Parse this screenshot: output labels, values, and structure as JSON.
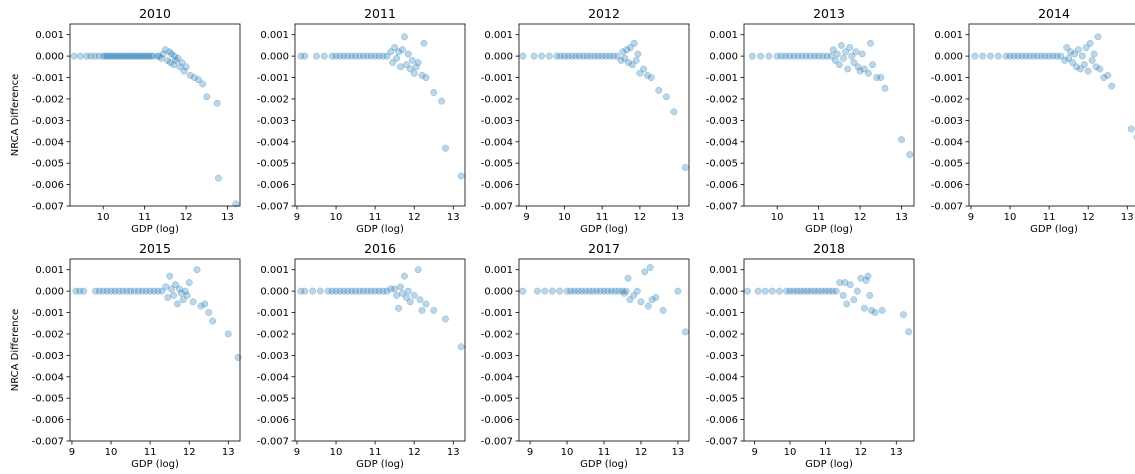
{
  "chart_data": [
    {
      "type": "scatter",
      "title": "2010",
      "xlabel": "GDP (log)",
      "ylabel": "NRCA Difference",
      "xlim": [
        9.2,
        13.3
      ],
      "ylim": [
        -0.007,
        0.0015
      ],
      "xticks": [
        10,
        11,
        12,
        13
      ],
      "yticks": [
        0.001,
        0.0,
        -0.001,
        -0.002,
        -0.003,
        -0.004,
        -0.005,
        -0.006,
        -0.007
      ],
      "x": [
        9.3,
        9.45,
        9.6,
        9.7,
        9.8,
        9.9,
        10.0,
        10.05,
        10.1,
        10.15,
        10.2,
        10.25,
        10.3,
        10.35,
        10.4,
        10.45,
        10.5,
        10.55,
        10.6,
        10.65,
        10.7,
        10.75,
        10.8,
        10.85,
        10.9,
        10.95,
        11.0,
        11.05,
        11.1,
        11.15,
        11.2,
        11.3,
        11.35,
        11.4,
        11.45,
        11.5,
        11.55,
        11.6,
        11.62,
        11.65,
        11.7,
        11.72,
        11.75,
        11.8,
        11.85,
        11.9,
        11.95,
        12.0,
        12.1,
        12.2,
        12.3,
        12.4,
        12.5,
        12.75,
        12.78,
        13.2
      ],
      "y": [
        0.0,
        0.0,
        0.0,
        0.0,
        0.0,
        0.0,
        0.0,
        0.0,
        0.0,
        0.0,
        0.0,
        0.0,
        0.0,
        0.0,
        0.0,
        0.0,
        0.0,
        0.0,
        0.0,
        0.0,
        0.0,
        0.0,
        0.0,
        0.0,
        0.0,
        0.0,
        0.0,
        0.0,
        0.0,
        0.0,
        0.0,
        0.0,
        0.0,
        -0.0001,
        0.0001,
        0.0003,
        -0.0002,
        0.0002,
        -0.0003,
        0.0001,
        -0.0004,
        0.0,
        -0.0002,
        -0.0001,
        -0.0005,
        -0.0003,
        -0.0007,
        -0.0005,
        -0.0009,
        -0.001,
        -0.0011,
        -0.0013,
        -0.0019,
        -0.0022,
        -0.0057,
        -0.0069
      ]
    },
    {
      "type": "scatter",
      "title": "2011",
      "xlabel": "GDP (log)",
      "ylabel": "",
      "xlim": [
        8.95,
        13.3
      ],
      "ylim": [
        -0.007,
        0.0015
      ],
      "xticks": [
        9,
        10,
        11,
        12,
        13
      ],
      "yticks": [
        0.001,
        0.0,
        -0.001,
        -0.002,
        -0.003,
        -0.004,
        -0.005,
        -0.006,
        -0.007
      ],
      "x": [
        9.1,
        9.2,
        9.5,
        9.7,
        9.9,
        10.0,
        10.1,
        10.2,
        10.3,
        10.4,
        10.5,
        10.6,
        10.7,
        10.8,
        10.9,
        11.0,
        11.1,
        11.2,
        11.3,
        11.4,
        11.45,
        11.5,
        11.55,
        11.6,
        11.65,
        11.7,
        11.75,
        11.8,
        11.85,
        11.9,
        11.95,
        12.0,
        12.05,
        12.1,
        12.2,
        12.25,
        12.3,
        12.5,
        12.7,
        12.8,
        13.2
      ],
      "y": [
        0.0,
        0.0,
        0.0,
        0.0,
        0.0,
        0.0,
        0.0,
        0.0,
        0.0,
        0.0,
        0.0,
        0.0,
        0.0,
        0.0,
        0.0,
        0.0,
        0.0,
        0.0,
        0.0,
        0.0002,
        -0.0003,
        0.0004,
        -0.0001,
        0.0002,
        -0.0005,
        0.0003,
        0.0009,
        -0.0004,
        0.0001,
        -0.0006,
        -0.0002,
        -0.0008,
        -0.0005,
        -0.0003,
        -0.0009,
        0.0006,
        -0.001,
        -0.0017,
        -0.0021,
        -0.0043,
        -0.0056
      ]
    },
    {
      "type": "scatter",
      "title": "2012",
      "xlabel": "GDP (log)",
      "ylabel": "",
      "xlim": [
        8.8,
        13.3
      ],
      "ylim": [
        -0.007,
        0.0015
      ],
      "xticks": [
        9,
        10,
        11,
        12,
        13
      ],
      "yticks": [
        0.001,
        0.0,
        -0.001,
        -0.002,
        -0.003,
        -0.004,
        -0.005,
        -0.006,
        -0.007
      ],
      "x": [
        8.9,
        9.2,
        9.4,
        9.6,
        9.8,
        9.9,
        10.0,
        10.1,
        10.2,
        10.3,
        10.4,
        10.5,
        10.6,
        10.7,
        10.8,
        10.9,
        11.0,
        11.1,
        11.2,
        11.3,
        11.4,
        11.5,
        11.55,
        11.6,
        11.65,
        11.7,
        11.75,
        11.8,
        11.85,
        11.9,
        11.95,
        12.0,
        12.1,
        12.2,
        12.3,
        12.5,
        12.7,
        12.9,
        13.2
      ],
      "y": [
        0.0,
        0.0,
        0.0,
        0.0,
        0.0,
        0.0,
        0.0,
        0.0,
        0.0,
        0.0,
        0.0,
        0.0,
        0.0,
        0.0,
        0.0,
        0.0,
        0.0,
        0.0,
        0.0,
        0.0,
        0.0,
        -0.0002,
        0.0002,
        -0.0001,
        0.0003,
        -0.0003,
        0.0004,
        -0.0004,
        0.0006,
        -0.0002,
        0.0001,
        -0.0008,
        -0.0006,
        -0.0009,
        -0.001,
        -0.0016,
        -0.0019,
        -0.0026,
        -0.0052
      ]
    },
    {
      "type": "scatter",
      "title": "2013",
      "xlabel": "GDP (log)",
      "ylabel": "",
      "xlim": [
        9.2,
        13.3
      ],
      "ylim": [
        -0.007,
        0.0015
      ],
      "xticks": [
        10,
        11,
        12,
        13
      ],
      "yticks": [
        0.001,
        0.0,
        -0.001,
        -0.002,
        -0.003,
        -0.004,
        -0.005,
        -0.006,
        -0.007
      ],
      "x": [
        9.4,
        9.6,
        9.8,
        10.0,
        10.1,
        10.2,
        10.3,
        10.4,
        10.5,
        10.6,
        10.7,
        10.8,
        10.9,
        11.0,
        11.1,
        11.2,
        11.3,
        11.35,
        11.4,
        11.45,
        11.5,
        11.55,
        11.6,
        11.65,
        11.7,
        11.75,
        11.8,
        11.85,
        11.9,
        11.95,
        12.0,
        12.05,
        12.1,
        12.2,
        12.25,
        12.3,
        12.4,
        12.5,
        12.6,
        13.0,
        13.2
      ],
      "y": [
        0.0,
        0.0,
        0.0,
        0.0,
        0.0,
        0.0,
        0.0,
        0.0,
        0.0,
        0.0,
        0.0,
        0.0,
        0.0,
        0.0,
        0.0,
        0.0,
        0.0,
        0.0003,
        -0.0002,
        0.0001,
        -0.0004,
        0.0005,
        -0.0001,
        0.0002,
        -0.0006,
        0.0004,
        0.0,
        -0.0003,
        0.0002,
        -0.0005,
        -0.0007,
        0.0001,
        -0.0006,
        -0.0008,
        0.0006,
        -0.0004,
        -0.001,
        -0.001,
        -0.0015,
        -0.0039,
        -0.0046
      ]
    },
    {
      "type": "scatter",
      "title": "2014",
      "xlabel": "GDP (log)",
      "ylabel": "",
      "xlim": [
        8.95,
        13.3
      ],
      "ylim": [
        -0.007,
        0.0015
      ],
      "xticks": [
        9,
        10,
        11,
        12,
        13
      ],
      "yticks": [
        0.001,
        0.0,
        -0.001,
        -0.002,
        -0.003,
        -0.004,
        -0.005,
        -0.006,
        -0.007
      ],
      "x": [
        9.1,
        9.3,
        9.5,
        9.7,
        9.9,
        10.0,
        10.1,
        10.2,
        10.3,
        10.4,
        10.5,
        10.6,
        10.7,
        10.8,
        10.9,
        11.0,
        11.1,
        11.2,
        11.3,
        11.4,
        11.45,
        11.5,
        11.55,
        11.6,
        11.65,
        11.7,
        11.75,
        11.8,
        11.85,
        11.9,
        11.95,
        12.0,
        12.05,
        12.1,
        12.15,
        12.2,
        12.25,
        12.3,
        12.4,
        12.5,
        12.6,
        13.1,
        13.25
      ],
      "y": [
        0.0,
        0.0,
        0.0,
        0.0,
        0.0,
        0.0,
        0.0,
        0.0,
        0.0,
        0.0,
        0.0,
        0.0,
        0.0,
        0.0,
        0.0,
        0.0,
        0.0,
        0.0,
        0.0,
        -0.0002,
        0.0004,
        -0.0001,
        0.0002,
        -0.0003,
        0.0001,
        -0.0005,
        0.0003,
        -0.0006,
        0.0,
        -0.0004,
        0.0004,
        -0.0007,
        0.0006,
        -0.0002,
        0.0001,
        -0.0005,
        0.0009,
        -0.0006,
        -0.001,
        -0.0009,
        -0.0014,
        -0.0034,
        -0.0038
      ]
    },
    {
      "type": "scatter",
      "title": "2015",
      "xlabel": "GDP (log)",
      "ylabel": "NRCA Difference",
      "xlim": [
        8.95,
        13.3
      ],
      "ylim": [
        -0.007,
        0.0015
      ],
      "xticks": [
        9,
        10,
        11,
        12,
        13
      ],
      "yticks": [
        0.001,
        0.0,
        -0.001,
        -0.002,
        -0.003,
        -0.004,
        -0.005,
        -0.006,
        -0.007
      ],
      "x": [
        9.1,
        9.2,
        9.3,
        9.6,
        9.7,
        9.8,
        9.9,
        10.0,
        10.1,
        10.2,
        10.3,
        10.4,
        10.5,
        10.6,
        10.7,
        10.8,
        10.9,
        11.0,
        11.1,
        11.2,
        11.3,
        11.4,
        11.45,
        11.5,
        11.55,
        11.6,
        11.65,
        11.7,
        11.75,
        11.8,
        11.85,
        11.9,
        11.95,
        12.0,
        12.1,
        12.2,
        12.3,
        12.4,
        12.5,
        12.6,
        13.0,
        13.25
      ],
      "y": [
        0.0,
        0.0,
        0.0,
        0.0,
        0.0,
        0.0,
        0.0,
        0.0,
        0.0,
        0.0,
        0.0,
        0.0,
        0.0,
        0.0,
        0.0,
        0.0,
        0.0,
        0.0,
        0.0,
        0.0,
        0.0,
        0.0002,
        -0.0003,
        0.0007,
        0.0001,
        -0.0002,
        0.0003,
        -0.0006,
        0.0001,
        -0.0001,
        -0.0004,
        0.0,
        -0.0002,
        0.0004,
        -0.0005,
        0.001,
        -0.0007,
        -0.0006,
        -0.001,
        -0.0014,
        -0.002,
        -0.0031
      ]
    },
    {
      "type": "scatter",
      "title": "2016",
      "xlabel": "GDP (log)",
      "ylabel": "",
      "xlim": [
        8.95,
        13.3
      ],
      "ylim": [
        -0.007,
        0.0015
      ],
      "xticks": [
        9,
        10,
        11,
        12,
        13
      ],
      "yticks": [
        0.001,
        0.0,
        -0.001,
        -0.002,
        -0.003,
        -0.004,
        -0.005,
        -0.006,
        -0.007
      ],
      "x": [
        9.1,
        9.2,
        9.4,
        9.6,
        9.8,
        9.9,
        10.0,
        10.1,
        10.2,
        10.3,
        10.4,
        10.5,
        10.6,
        10.7,
        10.8,
        10.9,
        11.0,
        11.1,
        11.2,
        11.3,
        11.4,
        11.5,
        11.55,
        11.6,
        11.65,
        11.7,
        11.75,
        11.8,
        11.85,
        11.9,
        12.0,
        12.1,
        12.15,
        12.2,
        12.3,
        12.5,
        12.8,
        13.2
      ],
      "y": [
        0.0,
        0.0,
        0.0,
        0.0,
        0.0,
        0.0,
        0.0,
        0.0,
        0.0,
        0.0,
        0.0,
        0.0,
        0.0,
        0.0,
        0.0,
        0.0,
        0.0,
        0.0,
        0.0,
        0.0,
        0.0001,
        0.0001,
        -0.0002,
        -0.0008,
        0.0002,
        -0.0001,
        0.0007,
        -0.0003,
        0.0,
        -0.0005,
        -0.0002,
        0.001,
        -0.0004,
        -0.0009,
        -0.0006,
        -0.0009,
        -0.0013,
        -0.0026
      ]
    },
    {
      "type": "scatter",
      "title": "2017",
      "xlabel": "GDP (log)",
      "ylabel": "",
      "xlim": [
        8.7,
        13.3
      ],
      "ylim": [
        -0.007,
        0.0015
      ],
      "xticks": [
        9,
        10,
        11,
        12,
        13
      ],
      "yticks": [
        0.001,
        0.0,
        -0.001,
        -0.002,
        -0.003,
        -0.004,
        -0.005,
        -0.006,
        -0.007
      ],
      "x": [
        8.8,
        9.2,
        9.4,
        9.6,
        9.8,
        10.0,
        10.1,
        10.2,
        10.3,
        10.4,
        10.5,
        10.6,
        10.7,
        10.8,
        10.9,
        11.0,
        11.1,
        11.2,
        11.3,
        11.4,
        11.5,
        11.55,
        11.6,
        11.65,
        11.7,
        11.8,
        11.9,
        12.0,
        12.1,
        12.2,
        12.25,
        12.3,
        12.4,
        12.6,
        13.0,
        13.2
      ],
      "y": [
        0.0,
        0.0,
        0.0,
        0.0,
        0.0,
        0.0,
        0.0,
        0.0,
        0.0,
        0.0,
        0.0,
        0.0,
        0.0,
        0.0,
        0.0,
        0.0,
        0.0,
        0.0,
        0.0,
        0.0,
        0.0,
        -0.0001,
        0.0,
        0.0006,
        -0.0004,
        -0.0002,
        0.0,
        -0.0005,
        0.0009,
        -0.0007,
        0.0011,
        -0.0004,
        -0.0003,
        -0.0009,
        0.0,
        -0.0019
      ]
    },
    {
      "type": "scatter",
      "title": "2018",
      "xlabel": "GDP (log)",
      "ylabel": "",
      "xlim": [
        8.7,
        13.5
      ],
      "ylim": [
        -0.007,
        0.0015
      ],
      "xticks": [
        9,
        10,
        11,
        12,
        13
      ],
      "yticks": [
        0.001,
        0.0,
        -0.001,
        -0.002,
        -0.003,
        -0.004,
        -0.005,
        -0.006,
        -0.007
      ],
      "x": [
        8.8,
        9.1,
        9.3,
        9.5,
        9.7,
        9.9,
        10.0,
        10.1,
        10.2,
        10.3,
        10.4,
        10.5,
        10.6,
        10.7,
        10.8,
        10.9,
        11.0,
        11.1,
        11.2,
        11.3,
        11.4,
        11.5,
        11.55,
        11.6,
        11.7,
        11.8,
        11.9,
        12.0,
        12.1,
        12.15,
        12.2,
        12.25,
        12.3,
        12.4,
        12.6,
        13.2,
        13.35
      ],
      "y": [
        0.0,
        0.0,
        0.0,
        0.0,
        0.0,
        0.0,
        0.0,
        0.0,
        0.0,
        0.0,
        0.0,
        0.0,
        0.0,
        0.0,
        0.0,
        0.0,
        0.0,
        0.0,
        0.0,
        0.0,
        0.0004,
        -0.0002,
        0.0004,
        -0.0006,
        0.0003,
        -0.0004,
        0.0,
        0.0006,
        -0.0008,
        0.0005,
        0.0007,
        -0.0002,
        -0.0009,
        -0.001,
        -0.0009,
        -0.0011,
        -0.0019
      ]
    }
  ]
}
